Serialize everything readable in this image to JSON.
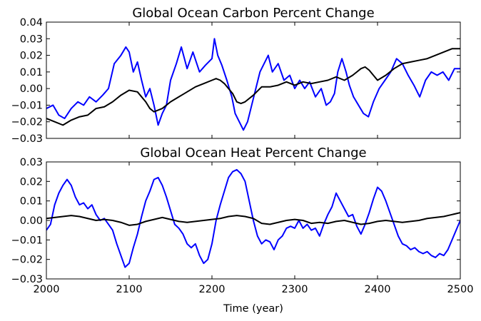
{
  "figure": {
    "xlabel": "Time (year)"
  },
  "chart_data": [
    {
      "type": "line",
      "title": "Global Ocean Carbon Percent Change",
      "xlabel": "",
      "ylabel": "",
      "xlim": [
        2000,
        2500
      ],
      "ylim": [
        -0.03,
        0.04
      ],
      "xticks": [
        2000,
        2100,
        2200,
        2300,
        2400,
        2500
      ],
      "yticks": [
        -0.03,
        -0.02,
        -0.01,
        0.0,
        0.01,
        0.02,
        0.03,
        0.04
      ],
      "ytick_labels": [
        "−0.03",
        "−0.02",
        "−0.01",
        "0.00",
        "0.01",
        "0.02",
        "0.03",
        "0.04"
      ],
      "show_xtick_labels": false,
      "grid": false,
      "series": [
        {
          "color": "#0000ff",
          "x": [
            2000,
            2008,
            2015,
            2022,
            2030,
            2038,
            2045,
            2052,
            2060,
            2068,
            2075,
            2082,
            2090,
            2096,
            2100,
            2105,
            2110,
            2115,
            2120,
            2125,
            2130,
            2135,
            2140,
            2145,
            2150,
            2157,
            2163,
            2170,
            2177,
            2185,
            2192,
            2200,
            2203,
            2207,
            2212,
            2218,
            2224,
            2228,
            2233,
            2238,
            2243,
            2248,
            2253,
            2258,
            2263,
            2268,
            2273,
            2280,
            2287,
            2294,
            2300,
            2306,
            2312,
            2318,
            2325,
            2332,
            2338,
            2343,
            2348,
            2352,
            2357,
            2362,
            2366,
            2371,
            2377,
            2383,
            2389,
            2395,
            2402,
            2409,
            2416,
            2423,
            2430,
            2437,
            2444,
            2451,
            2458,
            2465,
            2472,
            2479,
            2486,
            2493,
            2500
          ],
          "y": [
            -0.012,
            -0.01,
            -0.016,
            -0.018,
            -0.012,
            -0.008,
            -0.01,
            -0.005,
            -0.008,
            -0.004,
            0.0,
            0.015,
            0.02,
            0.025,
            0.022,
            0.01,
            0.016,
            0.005,
            -0.005,
            0.0,
            -0.01,
            -0.022,
            -0.015,
            -0.01,
            0.005,
            0.015,
            0.025,
            0.012,
            0.022,
            0.01,
            0.014,
            0.018,
            0.03,
            0.02,
            0.014,
            0.005,
            -0.005,
            -0.015,
            -0.02,
            -0.025,
            -0.02,
            -0.01,
            0.0,
            0.01,
            0.015,
            0.02,
            0.01,
            0.015,
            0.005,
            0.008,
            0.0,
            0.005,
            0.0,
            0.004,
            -0.005,
            0.0,
            -0.01,
            -0.008,
            -0.003,
            0.01,
            0.018,
            0.01,
            0.002,
            -0.005,
            -0.01,
            -0.015,
            -0.017,
            -0.008,
            0.0,
            0.005,
            0.01,
            0.018,
            0.015,
            0.008,
            0.002,
            -0.005,
            0.005,
            0.01,
            0.008,
            0.01,
            0.005,
            0.012,
            0.012
          ]
        },
        {
          "color": "#000000",
          "x": [
            2000,
            2010,
            2020,
            2030,
            2040,
            2050,
            2060,
            2070,
            2080,
            2090,
            2100,
            2110,
            2120,
            2125,
            2130,
            2140,
            2150,
            2160,
            2170,
            2180,
            2190,
            2200,
            2205,
            2210,
            2215,
            2220,
            2225,
            2230,
            2235,
            2240,
            2250,
            2260,
            2270,
            2280,
            2290,
            2300,
            2310,
            2320,
            2330,
            2340,
            2350,
            2360,
            2370,
            2375,
            2380,
            2385,
            2390,
            2395,
            2400,
            2410,
            2420,
            2430,
            2440,
            2450,
            2460,
            2470,
            2480,
            2490,
            2500
          ],
          "y": [
            -0.018,
            -0.02,
            -0.022,
            -0.019,
            -0.017,
            -0.016,
            -0.012,
            -0.011,
            -0.008,
            -0.004,
            -0.001,
            -0.002,
            -0.008,
            -0.012,
            -0.014,
            -0.012,
            -0.008,
            -0.005,
            -0.002,
            0.001,
            0.003,
            0.005,
            0.006,
            0.005,
            0.003,
            0.0,
            -0.003,
            -0.008,
            -0.009,
            -0.008,
            -0.004,
            0.001,
            0.001,
            0.002,
            0.004,
            0.002,
            0.004,
            0.003,
            0.004,
            0.005,
            0.007,
            0.005,
            0.008,
            0.01,
            0.012,
            0.013,
            0.011,
            0.008,
            0.005,
            0.008,
            0.012,
            0.015,
            0.016,
            0.017,
            0.018,
            0.02,
            0.022,
            0.024,
            0.024
          ]
        }
      ]
    },
    {
      "type": "line",
      "title": "Global Ocean Heat Percent Change",
      "xlabel": "Time (year)",
      "ylabel": "",
      "xlim": [
        2000,
        2500
      ],
      "ylim": [
        -0.03,
        0.03
      ],
      "xticks": [
        2000,
        2100,
        2200,
        2300,
        2400,
        2500
      ],
      "xtick_labels": [
        "2000",
        "2100",
        "2200",
        "2300",
        "2400",
        "2500"
      ],
      "yticks": [
        -0.03,
        -0.02,
        -0.01,
        0.0,
        0.01,
        0.02,
        0.03
      ],
      "ytick_labels": [
        "−0.03",
        "−0.02",
        "−0.01",
        "0.00",
        "0.01",
        "0.02",
        "0.03"
      ],
      "show_xtick_labels": true,
      "grid": false,
      "series": [
        {
          "color": "#0000ff",
          "x": [
            2000,
            2005,
            2010,
            2015,
            2020,
            2025,
            2030,
            2035,
            2040,
            2045,
            2050,
            2055,
            2060,
            2065,
            2070,
            2075,
            2080,
            2085,
            2090,
            2095,
            2100,
            2105,
            2110,
            2115,
            2120,
            2125,
            2130,
            2135,
            2140,
            2145,
            2150,
            2155,
            2160,
            2165,
            2170,
            2175,
            2180,
            2185,
            2190,
            2195,
            2200,
            2205,
            2210,
            2215,
            2220,
            2225,
            2230,
            2235,
            2240,
            2245,
            2250,
            2255,
            2260,
            2265,
            2270,
            2275,
            2280,
            2285,
            2290,
            2295,
            2300,
            2305,
            2310,
            2315,
            2320,
            2325,
            2330,
            2335,
            2340,
            2345,
            2350,
            2355,
            2360,
            2365,
            2370,
            2375,
            2380,
            2385,
            2390,
            2395,
            2400,
            2405,
            2410,
            2415,
            2420,
            2425,
            2430,
            2435,
            2440,
            2445,
            2450,
            2455,
            2460,
            2465,
            2470,
            2475,
            2480,
            2485,
            2490,
            2495,
            2500
          ],
          "y": [
            -0.005,
            -0.002,
            0.008,
            0.014,
            0.018,
            0.021,
            0.018,
            0.012,
            0.008,
            0.009,
            0.006,
            0.008,
            0.003,
            0.0,
            0.001,
            -0.002,
            -0.005,
            -0.012,
            -0.018,
            -0.024,
            -0.022,
            -0.014,
            -0.007,
            0.002,
            0.01,
            0.015,
            0.021,
            0.022,
            0.018,
            0.012,
            0.005,
            -0.002,
            -0.004,
            -0.007,
            -0.012,
            -0.014,
            -0.012,
            -0.018,
            -0.022,
            -0.02,
            -0.012,
            0.0,
            0.008,
            0.015,
            0.022,
            0.025,
            0.026,
            0.024,
            0.02,
            0.01,
            0.0,
            -0.008,
            -0.012,
            -0.01,
            -0.011,
            -0.015,
            -0.01,
            -0.008,
            -0.004,
            -0.003,
            -0.004,
            0.0,
            -0.004,
            -0.002,
            -0.005,
            -0.004,
            -0.008,
            -0.002,
            0.003,
            0.007,
            0.014,
            0.01,
            0.006,
            0.002,
            0.003,
            -0.003,
            -0.007,
            -0.002,
            0.004,
            0.011,
            0.017,
            0.015,
            0.01,
            0.004,
            -0.002,
            -0.008,
            -0.012,
            -0.013,
            -0.015,
            -0.014,
            -0.016,
            -0.017,
            -0.016,
            -0.018,
            -0.019,
            -0.017,
            -0.018,
            -0.015,
            -0.01,
            -0.005,
            0.0
          ]
        },
        {
          "color": "#000000",
          "x": [
            2000,
            2010,
            2020,
            2030,
            2040,
            2050,
            2060,
            2070,
            2080,
            2090,
            2100,
            2110,
            2120,
            2130,
            2140,
            2150,
            2160,
            2170,
            2180,
            2190,
            2200,
            2210,
            2220,
            2230,
            2240,
            2250,
            2260,
            2270,
            2280,
            2290,
            2300,
            2310,
            2320,
            2330,
            2340,
            2350,
            2360,
            2370,
            2380,
            2390,
            2400,
            2410,
            2420,
            2430,
            2440,
            2450,
            2460,
            2470,
            2480,
            2490,
            2500
          ],
          "y": [
            0.001,
            0.0015,
            0.002,
            0.0025,
            0.002,
            0.001,
            0.0,
            0.0005,
            0.0,
            -0.001,
            -0.0025,
            -0.002,
            -0.0005,
            0.0005,
            0.0015,
            0.0005,
            -0.0005,
            -0.001,
            -0.0005,
            0.0,
            0.0005,
            0.001,
            0.002,
            0.0025,
            0.002,
            0.001,
            -0.0015,
            -0.002,
            -0.001,
            0.0,
            0.0005,
            0.0,
            -0.0015,
            -0.001,
            -0.0015,
            -0.0005,
            0.0,
            -0.001,
            -0.002,
            -0.0015,
            -0.0005,
            0.0,
            -0.0005,
            -0.001,
            -0.0005,
            0.0,
            0.001,
            0.0015,
            0.002,
            0.003,
            0.004
          ]
        }
      ]
    }
  ]
}
